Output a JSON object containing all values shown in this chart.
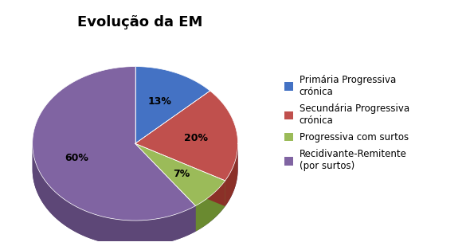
{
  "title": "Evolução da EM",
  "slices": [
    13,
    20,
    7,
    60
  ],
  "labels": [
    "13%",
    "20%",
    "7%",
    "60%"
  ],
  "colors": [
    "#4472C4",
    "#C0504D",
    "#9BBB59",
    "#8064A2"
  ],
  "side_colors": [
    "#2B4F8A",
    "#8B3028",
    "#6A8A30",
    "#5D4777"
  ],
  "legend_labels": [
    "Primária Progressiva\ncrónica",
    "Secundária Progressiva\ncrónica",
    "Progressiva com surtos",
    "Recidivante-Remitente\n(por surtos)"
  ],
  "start_angle": 90,
  "title_fontsize": 13,
  "label_fontsize": 9,
  "legend_fontsize": 8.5,
  "background_color": "#FFFFFF"
}
